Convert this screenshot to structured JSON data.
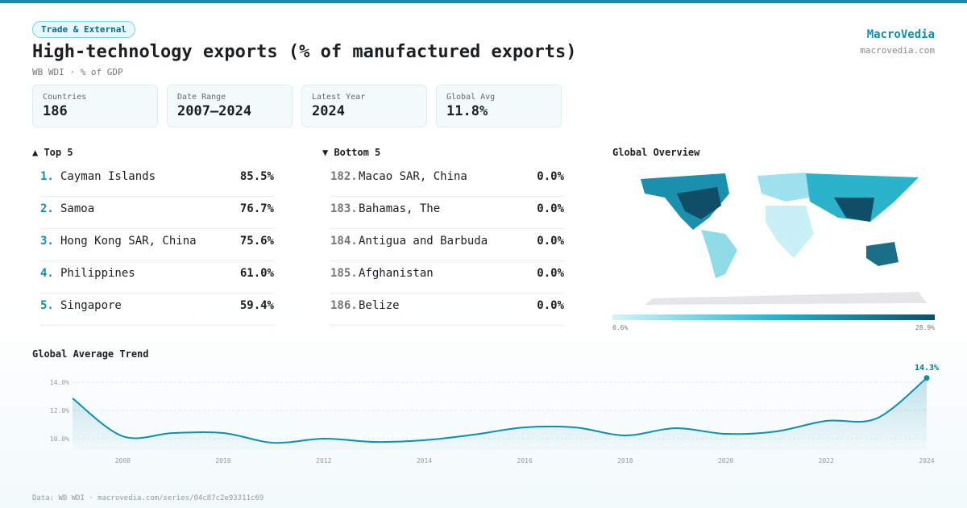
{
  "badge": "Trade & External",
  "title": "High-technology exports (% of manufactured exports)",
  "subtitle": "WB WDI · % of GDP",
  "brand": {
    "name": "MacroVedia",
    "url": "macrovedia.com"
  },
  "stats": [
    {
      "label": "Countries",
      "value": "186"
    },
    {
      "label": "Date Range",
      "value": "2007–2024"
    },
    {
      "label": "Latest Year",
      "value": "2024"
    },
    {
      "label": "Global Avg",
      "value": "11.8%"
    }
  ],
  "top": {
    "heading": "▲ Top 5",
    "rows": [
      {
        "rank": "1.",
        "name": "Cayman Islands",
        "value": "85.5%"
      },
      {
        "rank": "2.",
        "name": "Samoa",
        "value": "76.7%"
      },
      {
        "rank": "3.",
        "name": "Hong Kong SAR, China",
        "value": "75.6%"
      },
      {
        "rank": "4.",
        "name": "Philippines",
        "value": "61.0%"
      },
      {
        "rank": "5.",
        "name": "Singapore",
        "value": "59.4%"
      }
    ]
  },
  "bottom": {
    "heading": "▼ Bottom 5",
    "rows": [
      {
        "rank": "182.",
        "name": "Macao SAR, China",
        "value": "0.0%"
      },
      {
        "rank": "183.",
        "name": "Bahamas, The",
        "value": "0.0%"
      },
      {
        "rank": "184.",
        "name": "Antigua and Barbuda",
        "value": "0.0%"
      },
      {
        "rank": "185.",
        "name": "Afghanistan",
        "value": "0.0%"
      },
      {
        "rank": "186.",
        "name": "Belize",
        "value": "0.0%"
      }
    ]
  },
  "map": {
    "heading": "Global Overview",
    "legend_min": "0.6%",
    "legend_max": "28.9%"
  },
  "chart_data": {
    "type": "line",
    "title": "Global Average Trend",
    "color": "#0e8fb0",
    "x": [
      2007,
      2008,
      2009,
      2010,
      2011,
      2012,
      2013,
      2014,
      2015,
      2016,
      2017,
      2018,
      2019,
      2020,
      2021,
      2022,
      2023,
      2024
    ],
    "values": [
      12.86,
      10.17,
      10.4,
      10.4,
      9.71,
      10.0,
      9.77,
      9.89,
      10.29,
      10.8,
      10.8,
      10.23,
      10.74,
      10.34,
      10.51,
      11.26,
      11.43,
      14.3
    ],
    "value_labels": [
      null,
      null,
      null,
      null,
      null,
      null,
      null,
      null,
      null,
      null,
      null,
      null,
      null,
      null,
      null,
      null,
      null,
      "14.3%"
    ],
    "xlim": [
      2007,
      2024
    ],
    "xticks": [
      2008,
      2010,
      2012,
      2014,
      2016,
      2018,
      2020,
      2022,
      2024
    ],
    "ylim": [
      9.2,
      14.8
    ],
    "yticks": [
      {
        "value": 10,
        "label": "10.0%"
      },
      {
        "value": 12,
        "label": "12.0%"
      },
      {
        "value": 14,
        "label": "14.0%"
      }
    ],
    "grid": true
  },
  "footer": "Data: WB WDI · macrovedia.com/series/04c87c2e93311c69"
}
